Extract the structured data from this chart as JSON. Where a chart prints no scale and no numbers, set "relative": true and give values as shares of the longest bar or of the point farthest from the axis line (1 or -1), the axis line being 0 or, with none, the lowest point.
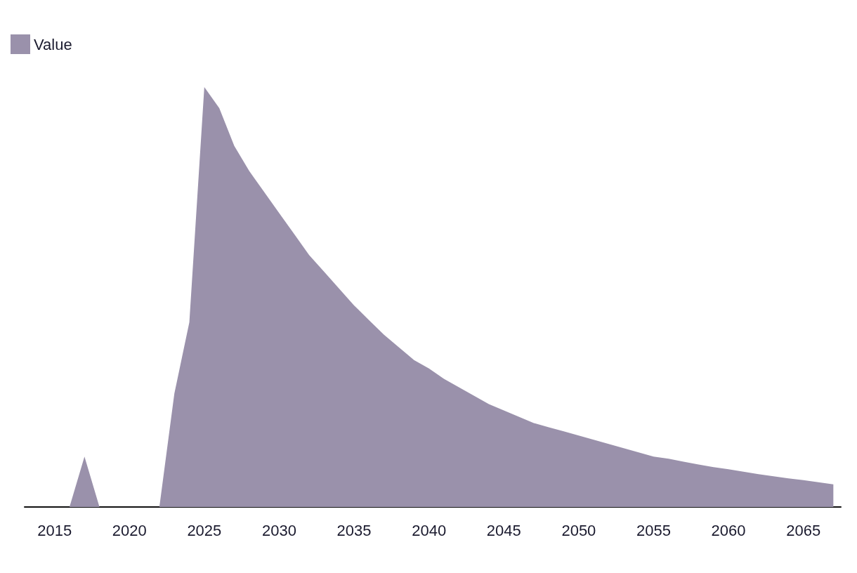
{
  "chart_data": {
    "type": "area",
    "relative": true,
    "x": [
      2016,
      2017,
      2018,
      2019,
      2020,
      2021,
      2022,
      2023,
      2024,
      2025,
      2026,
      2027,
      2028,
      2029,
      2030,
      2031,
      2032,
      2033,
      2034,
      2035,
      2036,
      2037,
      2038,
      2039,
      2040,
      2041,
      2042,
      2043,
      2044,
      2045,
      2046,
      2047,
      2048,
      2049,
      2050,
      2051,
      2052,
      2053,
      2054,
      2055,
      2056,
      2057,
      2058,
      2059,
      2060,
      2061,
      2062,
      2063,
      2064,
      2065,
      2066,
      2067
    ],
    "series": [
      {
        "name": "Value",
        "color": "#9a91ab",
        "values": [
          0,
          0.12,
          0,
          0,
          0,
          0,
          0,
          0.27,
          0.44,
          1,
          0.95,
          0.86,
          0.8,
          0.75,
          0.7,
          0.65,
          0.6,
          0.56,
          0.52,
          0.48,
          0.445,
          0.41,
          0.38,
          0.35,
          0.33,
          0.305,
          0.285,
          0.265,
          0.245,
          0.23,
          0.215,
          0.2,
          0.19,
          0.18,
          0.17,
          0.16,
          0.15,
          0.14,
          0.13,
          0.12,
          0.115,
          0.108,
          0.101,
          0.095,
          0.09,
          0.084,
          0.078,
          0.073,
          0.068,
          0.064,
          0.059,
          0.054
        ]
      }
    ],
    "xlim": [
      2013,
      2067.5
    ],
    "xticks": [
      2015,
      2020,
      2025,
      2030,
      2035,
      2040,
      2045,
      2050,
      2055,
      2060,
      2065
    ],
    "grid": false,
    "legend": "top left"
  }
}
